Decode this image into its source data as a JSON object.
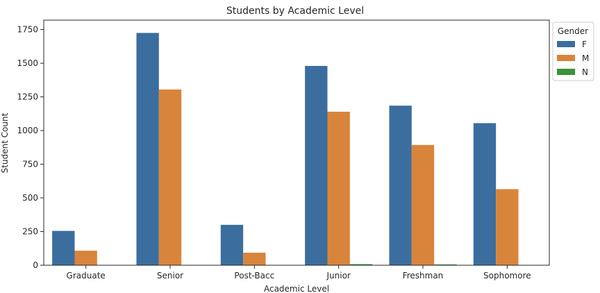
{
  "chart_data": {
    "type": "bar",
    "title": "Students by Academic Level",
    "xlabel": "Academic Level",
    "ylabel": "Student Count",
    "categories": [
      "Graduate",
      "Senior",
      "Post-Bacc",
      "Junior",
      "Freshman",
      "Sophomore"
    ],
    "series": [
      {
        "name": "F",
        "color": "#3b6e9e",
        "values": [
          255,
          1725,
          300,
          1480,
          1185,
          1055
        ]
      },
      {
        "name": "M",
        "color": "#d9843b",
        "values": [
          108,
          1305,
          93,
          1140,
          893,
          565
        ]
      },
      {
        "name": "N",
        "color": "#3a923a",
        "values": [
          0,
          0,
          0,
          8,
          6,
          0
        ]
      }
    ],
    "ylim": [
      0,
      1820
    ],
    "yticks": [
      0,
      250,
      500,
      750,
      1000,
      1250,
      1500,
      1750
    ],
    "ytick_labels": [
      "0",
      "250",
      "500",
      "750",
      "1000",
      "1250",
      "1500",
      "1750"
    ],
    "grid": false,
    "legend": {
      "title": "Gender",
      "position": "outside top-right"
    }
  }
}
